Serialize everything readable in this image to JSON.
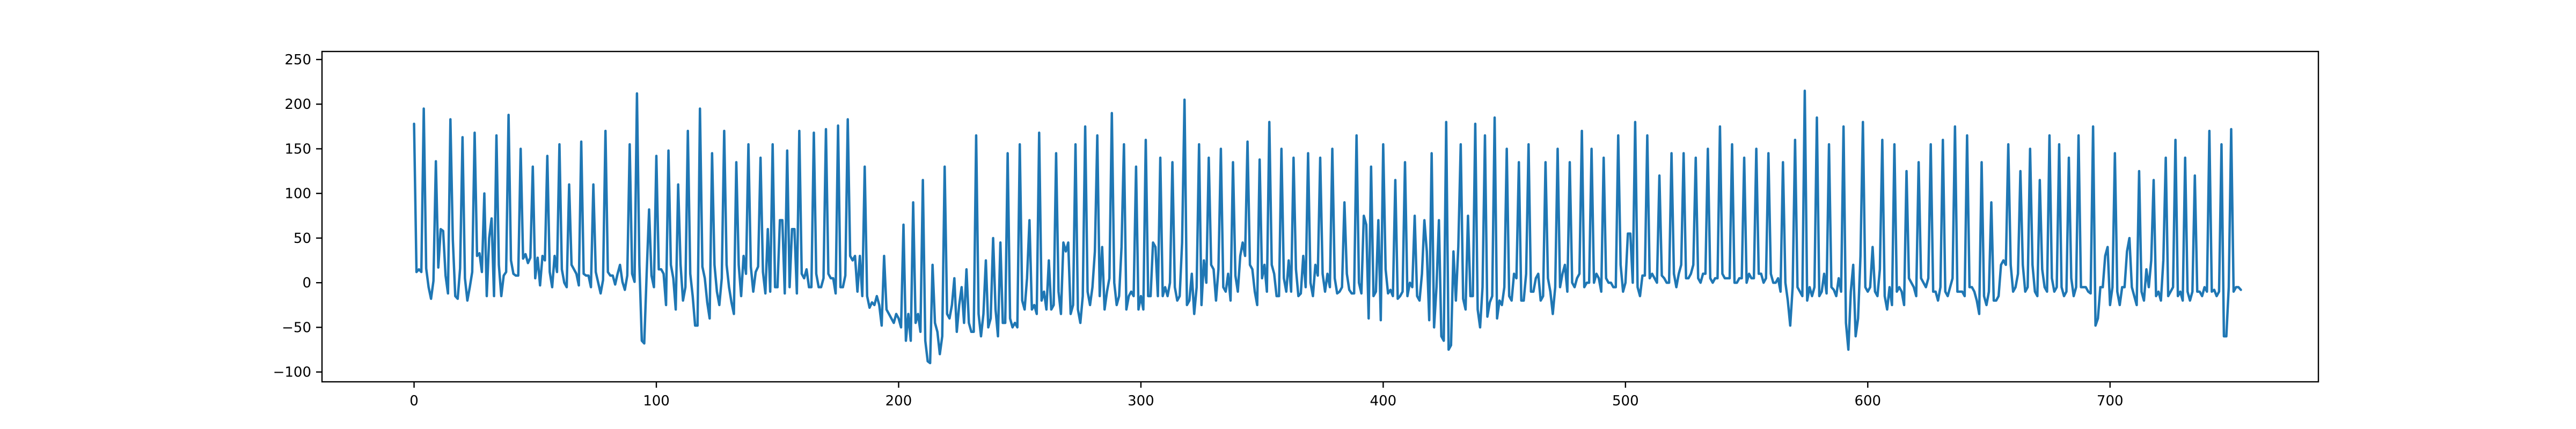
{
  "chart_data": {
    "type": "line",
    "title": "",
    "xlabel": "",
    "ylabel": "",
    "xlim": [
      -38,
      786
    ],
    "ylim": [
      -111,
      259
    ],
    "x_ticks": [
      0,
      100,
      200,
      300,
      400,
      500,
      600,
      700
    ],
    "y_ticks": [
      -100,
      -50,
      0,
      50,
      100,
      150,
      200,
      250
    ],
    "grid": false,
    "legend": "none",
    "line_color": "#1f77b4",
    "series": [
      {
        "x_start": 0,
        "x_step": 1,
        "values": [
          178,
          12,
          15,
          12,
          195,
          16,
          -5,
          -18,
          2,
          136,
          17,
          60,
          58,
          8,
          -12,
          183,
          48,
          -15,
          -18,
          16,
          163,
          5,
          -20,
          -5,
          12,
          168,
          30,
          33,
          12,
          100,
          -15,
          50,
          72,
          -15,
          165,
          20,
          -15,
          8,
          12,
          188,
          25,
          10,
          8,
          8,
          150,
          27,
          32,
          22,
          28,
          130,
          5,
          28,
          -3,
          30,
          25,
          142,
          12,
          -5,
          30,
          12,
          155,
          15,
          0,
          -5,
          110,
          20,
          15,
          10,
          -3,
          158,
          10,
          8,
          8,
          -5,
          110,
          12,
          0,
          -12,
          3,
          170,
          12,
          8,
          8,
          -2,
          10,
          20,
          1,
          -8,
          8,
          155,
          10,
          1,
          212,
          20,
          -65,
          -68,
          10,
          82,
          8,
          -5,
          142,
          15,
          15,
          10,
          -25,
          148,
          20,
          5,
          -30,
          110,
          20,
          -20,
          -5,
          170,
          10,
          -15,
          -48,
          -48,
          195,
          18,
          5,
          -22,
          -40,
          145,
          20,
          -10,
          -25,
          5,
          170,
          20,
          -5,
          -22,
          -35,
          135,
          20,
          -15,
          30,
          10,
          155,
          18,
          -10,
          12,
          18,
          140,
          12,
          -12,
          60,
          -10,
          155,
          -5,
          -5,
          70,
          70,
          -12,
          148,
          -5,
          60,
          60,
          -12,
          170,
          10,
          5,
          15,
          -5,
          -5,
          168,
          10,
          -5,
          -5,
          5,
          172,
          10,
          5,
          5,
          -12,
          176,
          -5,
          -5,
          8,
          183,
          30,
          25,
          30,
          -10,
          30,
          -15,
          130,
          -15,
          -28,
          -22,
          -25,
          -15,
          -25,
          -48,
          30,
          -30,
          -35,
          -40,
          -45,
          -35,
          -40,
          -50,
          65,
          -65,
          -35,
          -65,
          90,
          -45,
          -35,
          -55,
          115,
          -65,
          -88,
          -90,
          20,
          -45,
          -55,
          -80,
          -60,
          130,
          -35,
          -40,
          -25,
          5,
          -55,
          -25,
          -5,
          -45,
          15,
          -45,
          -55,
          -55,
          165,
          -35,
          -60,
          -35,
          25,
          -50,
          -40,
          50,
          -30,
          -60,
          45,
          -45,
          -45,
          145,
          -40,
          -50,
          -45,
          -50,
          155,
          -20,
          -30,
          5,
          70,
          -30,
          -25,
          -35,
          168,
          -20,
          -10,
          -30,
          25,
          -30,
          -25,
          145,
          -10,
          -35,
          45,
          35,
          45,
          -35,
          -25,
          155,
          -30,
          -45,
          -15,
          175,
          -10,
          -25,
          -5,
          35,
          165,
          -15,
          40,
          -30,
          -10,
          5,
          190,
          0,
          -25,
          -15,
          40,
          155,
          -30,
          -15,
          -10,
          -15,
          130,
          -30,
          -15,
          -30,
          160,
          -15,
          -15,
          45,
          40,
          -15,
          140,
          -15,
          -5,
          -15,
          0,
          135,
          -5,
          -20,
          -15,
          45,
          205,
          -25,
          -20,
          10,
          -35,
          -5,
          155,
          -25,
          25,
          0,
          140,
          20,
          15,
          -20,
          15,
          150,
          -5,
          -10,
          10,
          -20,
          135,
          8,
          -10,
          30,
          45,
          30,
          158,
          20,
          15,
          -10,
          -25,
          138,
          5,
          20,
          -10,
          180,
          20,
          10,
          -15,
          -15,
          150,
          5,
          -10,
          25,
          -10,
          140,
          15,
          -15,
          -12,
          30,
          -5,
          145,
          0,
          -15,
          20,
          8,
          140,
          10,
          -10,
          10,
          -5,
          150,
          5,
          -12,
          -10,
          -5,
          90,
          10,
          -8,
          -12,
          -12,
          165,
          0,
          -12,
          75,
          65,
          -40,
          130,
          -15,
          -10,
          70,
          -42,
          155,
          15,
          -12,
          -8,
          -15,
          115,
          -18,
          -15,
          -10,
          135,
          -15,
          0,
          -5,
          75,
          -15,
          -20,
          10,
          70,
          35,
          -42,
          145,
          -50,
          -5,
          70,
          -60,
          -65,
          180,
          -75,
          -70,
          35,
          -20,
          40,
          155,
          -18,
          -30,
          75,
          -15,
          -15,
          178,
          -30,
          -50,
          -5,
          165,
          -38,
          -22,
          -15,
          185,
          -40,
          -20,
          -25,
          -5,
          150,
          -15,
          -20,
          10,
          5,
          135,
          -20,
          -20,
          10,
          155,
          -10,
          -10,
          5,
          10,
          -20,
          -15,
          135,
          5,
          -10,
          -35,
          -5,
          150,
          -5,
          10,
          20,
          -10,
          135,
          0,
          -5,
          5,
          10,
          170,
          -5,
          0,
          0,
          150,
          0,
          10,
          5,
          -10,
          140,
          5,
          0,
          0,
          -5,
          -5,
          165,
          20,
          -10,
          0,
          55,
          55,
          0,
          180,
          -5,
          -15,
          8,
          8,
          165,
          5,
          10,
          5,
          0,
          120,
          8,
          5,
          0,
          0,
          145,
          10,
          -5,
          10,
          20,
          145,
          5,
          5,
          10,
          20,
          140,
          5,
          0,
          10,
          10,
          150,
          5,
          0,
          5,
          5,
          175,
          10,
          5,
          5,
          5,
          155,
          0,
          0,
          5,
          5,
          140,
          0,
          10,
          5,
          5,
          150,
          10,
          10,
          0,
          5,
          145,
          10,
          0,
          0,
          5,
          -10,
          135,
          0,
          -20,
          -48,
          -5,
          160,
          -5,
          -10,
          -15,
          215,
          -20,
          -5,
          -15,
          -5,
          185,
          -15,
          -10,
          10,
          -12,
          155,
          -5,
          -8,
          -15,
          5,
          -10,
          175,
          -45,
          -75,
          -10,
          20,
          -60,
          -40,
          30,
          180,
          -5,
          -10,
          -5,
          40,
          -10,
          -15,
          15,
          160,
          -15,
          -30,
          -5,
          -25,
          155,
          -10,
          -5,
          -10,
          -25,
          125,
          5,
          0,
          -5,
          -15,
          135,
          5,
          0,
          -5,
          5,
          155,
          -10,
          -10,
          -20,
          -5,
          160,
          -10,
          -15,
          -5,
          5,
          175,
          -10,
          -10,
          -10,
          -15,
          165,
          -5,
          -5,
          -10,
          -20,
          -35,
          135,
          -15,
          -25,
          -10,
          90,
          -20,
          -20,
          -15,
          20,
          25,
          20,
          155,
          20,
          -10,
          -5,
          10,
          125,
          20,
          -10,
          -5,
          150,
          20,
          -10,
          -15,
          115,
          15,
          -5,
          -10,
          165,
          5,
          -10,
          -5,
          155,
          -5,
          -15,
          -10,
          140,
          5,
          -15,
          -5,
          165,
          -5,
          -5,
          -5,
          -10,
          -12,
          175,
          -48,
          -40,
          -5,
          -5,
          30,
          40,
          -25,
          -5,
          145,
          -10,
          -25,
          -5,
          -5,
          35,
          50,
          -5,
          -15,
          -25,
          125,
          -10,
          -20,
          15,
          -5,
          25,
          115,
          -15,
          -10,
          -20,
          25,
          140,
          -15,
          -10,
          -5,
          160,
          -15,
          -10,
          -20,
          140,
          -10,
          -20,
          -10,
          120,
          -10,
          -10,
          -15,
          -5,
          -10,
          170,
          -10,
          -8,
          -15,
          -10,
          155,
          -60,
          -60,
          -5,
          172,
          -10,
          -5,
          -5,
          -8
        ]
      }
    ]
  }
}
